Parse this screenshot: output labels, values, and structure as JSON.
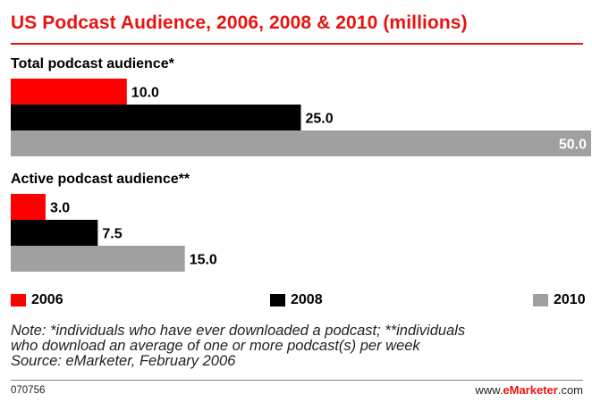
{
  "chart_data": {
    "type": "bar",
    "orientation": "horizontal",
    "title": "US Podcast Audience, 2006, 2008 & 2010 (millions)",
    "categories": [
      "Total podcast audience*",
      "Active podcast audience**"
    ],
    "series": [
      {
        "name": "2006",
        "values": [
          10.0,
          3.0
        ],
        "labels": [
          "10.0",
          "3.0"
        ],
        "color": "#ff0000"
      },
      {
        "name": "2008",
        "values": [
          25.0,
          7.5
        ],
        "labels": [
          "25.0",
          "7.5"
        ],
        "color": "#000000"
      },
      {
        "name": "2010",
        "values": [
          50.0,
          15.0
        ],
        "labels": [
          "50.0",
          "15.0"
        ],
        "color": "#a0a0a0"
      }
    ],
    "xlim": [
      0,
      50
    ],
    "grid": false,
    "legend_position": "bottom"
  },
  "note": {
    "line1": "Note: *individuals who have ever downloaded a podcast; **individuals",
    "line2": "who download an average of one or more podcast(s) per week",
    "line3": "Source: eMarketer, February 2006"
  },
  "footer": {
    "code": "070756",
    "brand_prefix": "www.",
    "brand_bold": "eMarketer",
    "brand_suffix": ".com"
  }
}
